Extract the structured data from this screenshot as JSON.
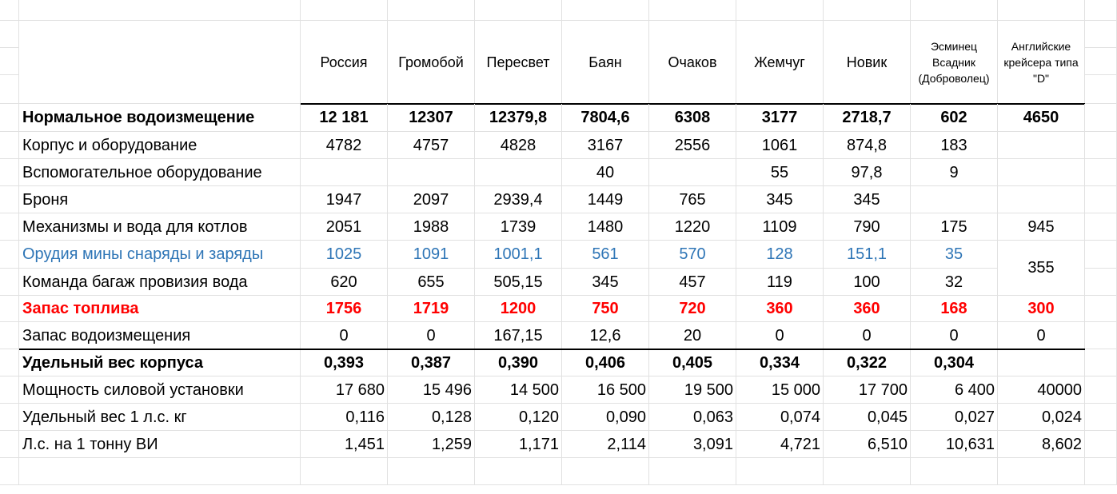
{
  "sheet": {
    "headers": [
      "Россия",
      "Громобой",
      "Пересвет",
      "Баян",
      "Очаков",
      "Жемчуг",
      "Новик",
      "Эсминец Всадник (Доброволец)",
      "Английские крейсера типа \"D\""
    ],
    "rows": [
      {
        "label": "Нормальное водоизмещение",
        "style": "bold",
        "values": [
          "12 181",
          "12307",
          "12379,8",
          "7804,6",
          "6308",
          "3177",
          "2718,7",
          "602",
          "4650"
        ]
      },
      {
        "label": "Корпус и оборудование",
        "style": "normal",
        "values": [
          "4782",
          "4757",
          "4828",
          "3167",
          "2556",
          "1061",
          "874,8",
          "183",
          ""
        ]
      },
      {
        "label": "Вспомогательное оборудование",
        "style": "normal",
        "values": [
          "",
          "",
          "",
          "40",
          "",
          "55",
          "97,8",
          "9",
          ""
        ]
      },
      {
        "label": "Броня",
        "style": "normal",
        "values": [
          "1947",
          "2097",
          "2939,4",
          "1449",
          "765",
          "345",
          "345",
          "",
          ""
        ]
      },
      {
        "label": "Механизмы и вода для котлов",
        "style": "normal",
        "values": [
          "2051",
          "1988",
          "1739",
          "1480",
          "1220",
          "1109",
          "790",
          "175",
          "945"
        ]
      },
      {
        "label": "Орудия мины снаряды и заряды",
        "style": "blue",
        "values": [
          "1025",
          "1091",
          "1001,1",
          "561",
          "570",
          "128",
          "151,1",
          "35",
          ""
        ]
      },
      {
        "label": "Команда багаж провизия вода",
        "style": "normal",
        "values": [
          "620",
          "655",
          "505,15",
          "345",
          "457",
          "119",
          "100",
          "32",
          ""
        ]
      },
      {
        "label": "Запас топлива",
        "style": "red",
        "values": [
          "1756",
          "1719",
          "1200",
          "750",
          "720",
          "360",
          "360",
          "168",
          "300"
        ]
      },
      {
        "label": "Запас водоизмещения",
        "style": "normal",
        "values": [
          "0",
          "0",
          "167,15",
          "12,6",
          "20",
          "0",
          "0",
          "0",
          "0"
        ]
      },
      {
        "label": "Удельный вес корпуса",
        "style": "bold",
        "values": [
          "0,393",
          "0,387",
          "0,390",
          "0,406",
          "0,405",
          "0,334",
          "0,322",
          "0,304",
          ""
        ]
      },
      {
        "label": "Мощность силовой установки",
        "style": "normal",
        "align": "right",
        "values": [
          "17 680",
          "15 496",
          "14 500",
          "16 500",
          "19 500",
          "15 000",
          "17 700",
          "6 400",
          "40000"
        ]
      },
      {
        "label": "Удельный вес 1 л.с. кг",
        "style": "normal",
        "align": "right",
        "values": [
          "0,116",
          "0,128",
          "0,120",
          "0,090",
          "0,063",
          "0,074",
          "0,045",
          "0,027",
          "0,024"
        ]
      },
      {
        "label": "Л.с. на 1 тонну ВИ",
        "style": "normal",
        "align": "right",
        "values": [
          "1,451",
          "1,259",
          "1,171",
          "2,114",
          "3,091",
          "4,721",
          "6,510",
          "10,631",
          "8,602"
        ]
      },
      {
        "label": "",
        "style": "normal",
        "values": [
          "",
          "",
          "",
          "",
          "",
          "",
          "",
          "",
          ""
        ]
      }
    ],
    "merged_d_value": "355"
  }
}
